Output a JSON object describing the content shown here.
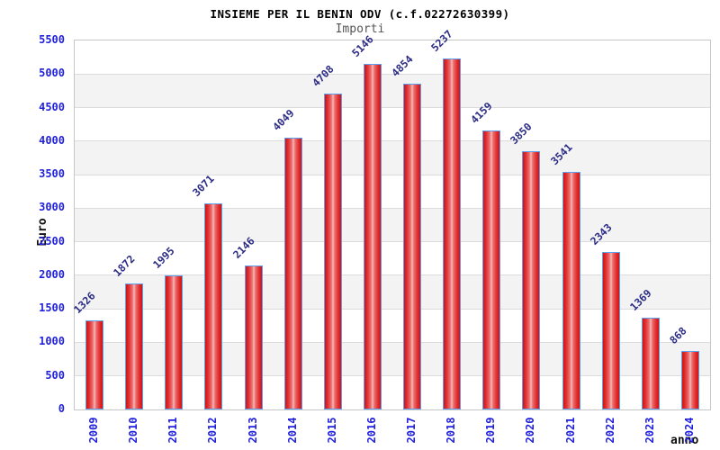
{
  "chart_data": {
    "type": "bar",
    "title": "INSIEME PER IL BENIN ODV (c.f.02272630399)",
    "subtitle": "Importi",
    "xlabel": "anno",
    "ylabel": "Euro",
    "categories": [
      "2009",
      "2010",
      "2011",
      "2012",
      "2013",
      "2014",
      "2015",
      "2016",
      "2017",
      "2018",
      "2019",
      "2020",
      "2021",
      "2022",
      "2023",
      "2024"
    ],
    "values": [
      1326,
      1872,
      1995,
      3071,
      2146,
      4049,
      4708,
      5146,
      4854,
      5237,
      4159,
      3850,
      3541,
      2343,
      1369,
      868
    ],
    "ylim": [
      0,
      5500
    ],
    "ytick_step": 500,
    "grid": true,
    "legend": false,
    "layout_hints": {
      "bands_alternating": true,
      "value_labels_rotated_45": true,
      "x_labels_rotated_90": true
    },
    "colors": {
      "bar_edge": "#d31212",
      "bar_center": "#f5baba",
      "bar_border": "#5aa2f0",
      "axis_tick_label": "#2121dd",
      "value_label": "#2b2b85",
      "band": "#f3f3f3",
      "gridline": "#dcdcdc",
      "plot_border": "#c6c6c6",
      "title": "#000000",
      "subtitle": "#555555"
    }
  }
}
